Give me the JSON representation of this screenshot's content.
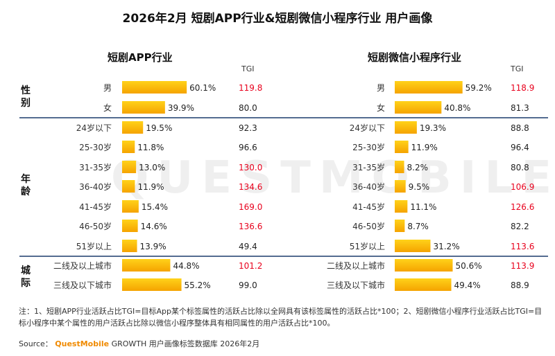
{
  "title": "2026年2月 短剧APP行业&短剧微信小程序行业 用户画像",
  "watermark": "QUESTMOBILE",
  "groups": [
    "性别",
    "年龄",
    "城际"
  ],
  "tgi_label": "TGI",
  "note": "注：1、短剧APP行业活跃占比TGI=目标App某个标签属性的活跃占比除以全网具有该标签属性的活跃占比*100；2、短剧微信小程序行业活跃占比TGI=目标小程序中某个属性的用户活跃占比除以微信小程序整体具有相同属性的用户活跃占比*100。",
  "source": {
    "prefix": "Source：",
    "brand": "QuestMobile",
    "suffix": "GROWTH 用户画像标签数据库 2026年2月"
  },
  "colors": {
    "bar_top": "#ffd21a",
    "bar_bottom": "#f5a300",
    "tgi_high": "#e8001c",
    "tgi_normal": "#222222",
    "separator": "#1a3a6b"
  },
  "chart_data": [
    {
      "type": "bar",
      "title": "短剧APP行业",
      "value_unit": "%",
      "categories": [
        "男",
        "女",
        "24岁以下",
        "25-30岁",
        "31-35岁",
        "36-40岁",
        "41-45岁",
        "46-50岁",
        "51岁以上",
        "二线及以上城市",
        "三线及以下城市"
      ],
      "category_groups": [
        "性别",
        "性别",
        "年龄",
        "年龄",
        "年龄",
        "年龄",
        "年龄",
        "年龄",
        "年龄",
        "城际",
        "城际"
      ],
      "values": [
        60.1,
        39.9,
        19.5,
        11.8,
        13.0,
        11.9,
        15.4,
        14.6,
        13.9,
        44.8,
        55.2
      ],
      "value_labels": [
        "60.1%",
        "39.9%",
        "19.5%",
        "11.8%",
        "13.0%",
        "11.9%",
        "15.4%",
        "14.6%",
        "13.9%",
        "44.8%",
        "55.2%"
      ],
      "tgi": [
        "119.8",
        "80.0",
        "92.3",
        "96.6",
        "130.0",
        "134.6",
        "169.0",
        "136.6",
        "49.4",
        "101.2",
        "99.0"
      ],
      "tgi_highlight": [
        true,
        false,
        false,
        false,
        true,
        true,
        true,
        true,
        false,
        true,
        false
      ]
    },
    {
      "type": "bar",
      "title": "短剧微信小程序行业",
      "value_unit": "%",
      "categories": [
        "男",
        "女",
        "24岁以下",
        "25-30岁",
        "31-35岁",
        "36-40岁",
        "41-45岁",
        "46-50岁",
        "51岁以上",
        "二线及以上城市",
        "三线及以下城市"
      ],
      "category_groups": [
        "性别",
        "性别",
        "年龄",
        "年龄",
        "年龄",
        "年龄",
        "年龄",
        "年龄",
        "年龄",
        "城际",
        "城际"
      ],
      "values": [
        59.2,
        40.8,
        19.3,
        11.9,
        8.2,
        9.5,
        11.1,
        8.7,
        31.2,
        50.6,
        49.4
      ],
      "value_labels": [
        "59.2%",
        "40.8%",
        "19.3%",
        "11.9%",
        "8.2%",
        "9.5%",
        "11.1%",
        "8.7%",
        "31.2%",
        "50.6%",
        "49.4%"
      ],
      "tgi": [
        "118.9",
        "81.3",
        "88.8",
        "96.4",
        "80.8",
        "106.9",
        "126.6",
        "82.2",
        "113.6",
        "113.9",
        "88.9"
      ],
      "tgi_highlight": [
        true,
        false,
        false,
        false,
        false,
        true,
        true,
        false,
        true,
        true,
        false
      ]
    }
  ]
}
